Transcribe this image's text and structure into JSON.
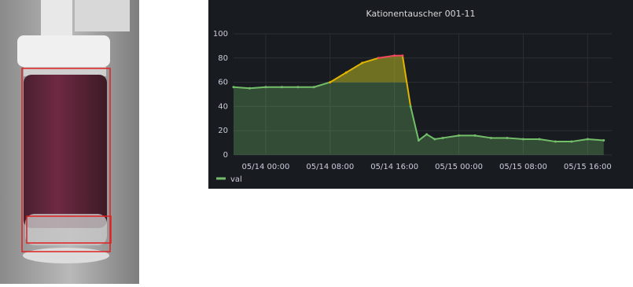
{
  "chart_data": {
    "type": "line",
    "title": "Kationentauscher 001-11",
    "x": [
      "05/13 20:00",
      "05/13 22:00",
      "05/14 00:00",
      "05/14 02:00",
      "05/14 04:00",
      "05/14 06:00",
      "05/14 08:00",
      "05/14 10:00",
      "05/14 12:00",
      "05/14 14:00",
      "05/14 16:00",
      "05/14 17:00",
      "05/14 18:00",
      "05/14 19:00",
      "05/14 20:00",
      "05/14 21:00",
      "05/14 22:00",
      "05/15 00:00",
      "05/15 02:00",
      "05/15 04:00",
      "05/15 06:00",
      "05/15 08:00",
      "05/15 10:00",
      "05/15 12:00",
      "05/15 14:00",
      "05/15 16:00",
      "05/15 18:00"
    ],
    "series": [
      {
        "name": "val",
        "color": "#73bf69",
        "values": [
          56,
          55,
          56,
          56,
          56,
          56,
          60,
          68,
          76,
          80,
          82,
          82,
          40,
          12,
          17,
          13,
          14,
          16,
          16,
          14,
          14,
          13,
          13,
          11,
          11,
          13,
          12
        ]
      }
    ],
    "thresholds": [
      {
        "value": 60,
        "color": "#e0b400"
      },
      {
        "value": 80,
        "color": "#f2495c"
      }
    ],
    "xlim": [
      "05/13 20:00",
      "05/15 19:00"
    ],
    "xticks": [
      "05/14 00:00",
      "05/14 08:00",
      "05/14 16:00",
      "05/15 00:00",
      "05/15 08:00",
      "05/15 16:00"
    ],
    "ylim": [
      0,
      100
    ],
    "yticks": [
      0,
      20,
      40,
      60,
      80,
      100
    ],
    "grid": true
  }
}
